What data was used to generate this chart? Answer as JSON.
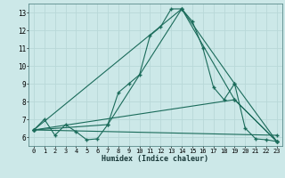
{
  "xlabel": "Humidex (Indice chaleur)",
  "background_color": "#cce8e8",
  "line_color": "#1a6b5a",
  "grid_color": "#b8d8d8",
  "xlim": [
    -0.5,
    23.5
  ],
  "ylim": [
    5.5,
    13.5
  ],
  "xticks": [
    0,
    1,
    2,
    3,
    4,
    5,
    6,
    7,
    8,
    9,
    10,
    11,
    12,
    13,
    14,
    15,
    16,
    17,
    18,
    19,
    20,
    21,
    22,
    23
  ],
  "yticks": [
    6,
    7,
    8,
    9,
    10,
    11,
    12,
    13
  ],
  "main_curve": {
    "x": [
      0,
      1,
      2,
      3,
      4,
      5,
      6,
      7,
      8,
      9,
      10,
      11,
      12,
      13,
      14,
      15,
      16,
      17,
      18,
      19,
      20,
      21,
      22,
      23
    ],
    "y": [
      6.4,
      7.0,
      6.1,
      6.7,
      6.3,
      5.85,
      5.9,
      6.7,
      8.5,
      9.0,
      9.5,
      11.7,
      12.2,
      13.2,
      13.2,
      12.5,
      11.0,
      8.8,
      8.1,
      9.0,
      6.5,
      5.9,
      5.85,
      5.75
    ]
  },
  "straight_lines": [
    {
      "x": [
        0,
        14,
        19,
        23
      ],
      "y": [
        6.4,
        13.2,
        9.0,
        5.75
      ]
    },
    {
      "x": [
        0,
        7,
        14,
        19,
        23
      ],
      "y": [
        6.4,
        6.7,
        13.2,
        8.1,
        5.75
      ]
    },
    {
      "x": [
        0,
        19,
        23
      ],
      "y": [
        6.4,
        8.1,
        5.75
      ]
    },
    {
      "x": [
        0,
        23
      ],
      "y": [
        6.4,
        6.1
      ]
    }
  ]
}
